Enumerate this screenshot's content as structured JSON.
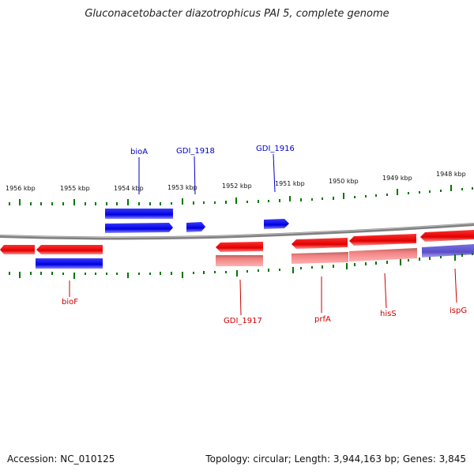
{
  "title": "Gluconacetobacter diazotrophicus PAI 5, complete genome",
  "footer": {
    "accession": "Accession: NC_010125",
    "stats": "Topology: circular; Length: 3,944,163 bp; Genes: 3,845"
  },
  "colors": {
    "forward_gene": "#0000ee",
    "reverse_gene": "#ee0000",
    "reverse_gene_faded": "#f08080",
    "purple_gene": "#6b5fcf",
    "backbone": "#808080",
    "ticks": "#007700"
  },
  "scale_labels": [
    "1956 kbp",
    "1955 kbp",
    "1954 kbp",
    "1953 kbp",
    "1952 kbp",
    "1951 kbp",
    "1950 kbp",
    "1949 kbp",
    "1948 kbp"
  ],
  "genes_top": [
    {
      "label": "bioA"
    },
    {
      "label": "GDI_1918"
    },
    {
      "label": "GDI_1916"
    }
  ],
  "genes_bottom": [
    {
      "label": "bioF"
    },
    {
      "label": "GDI_1917"
    },
    {
      "label": "prfA"
    },
    {
      "label": "hisS"
    },
    {
      "label": "ispG"
    }
  ]
}
